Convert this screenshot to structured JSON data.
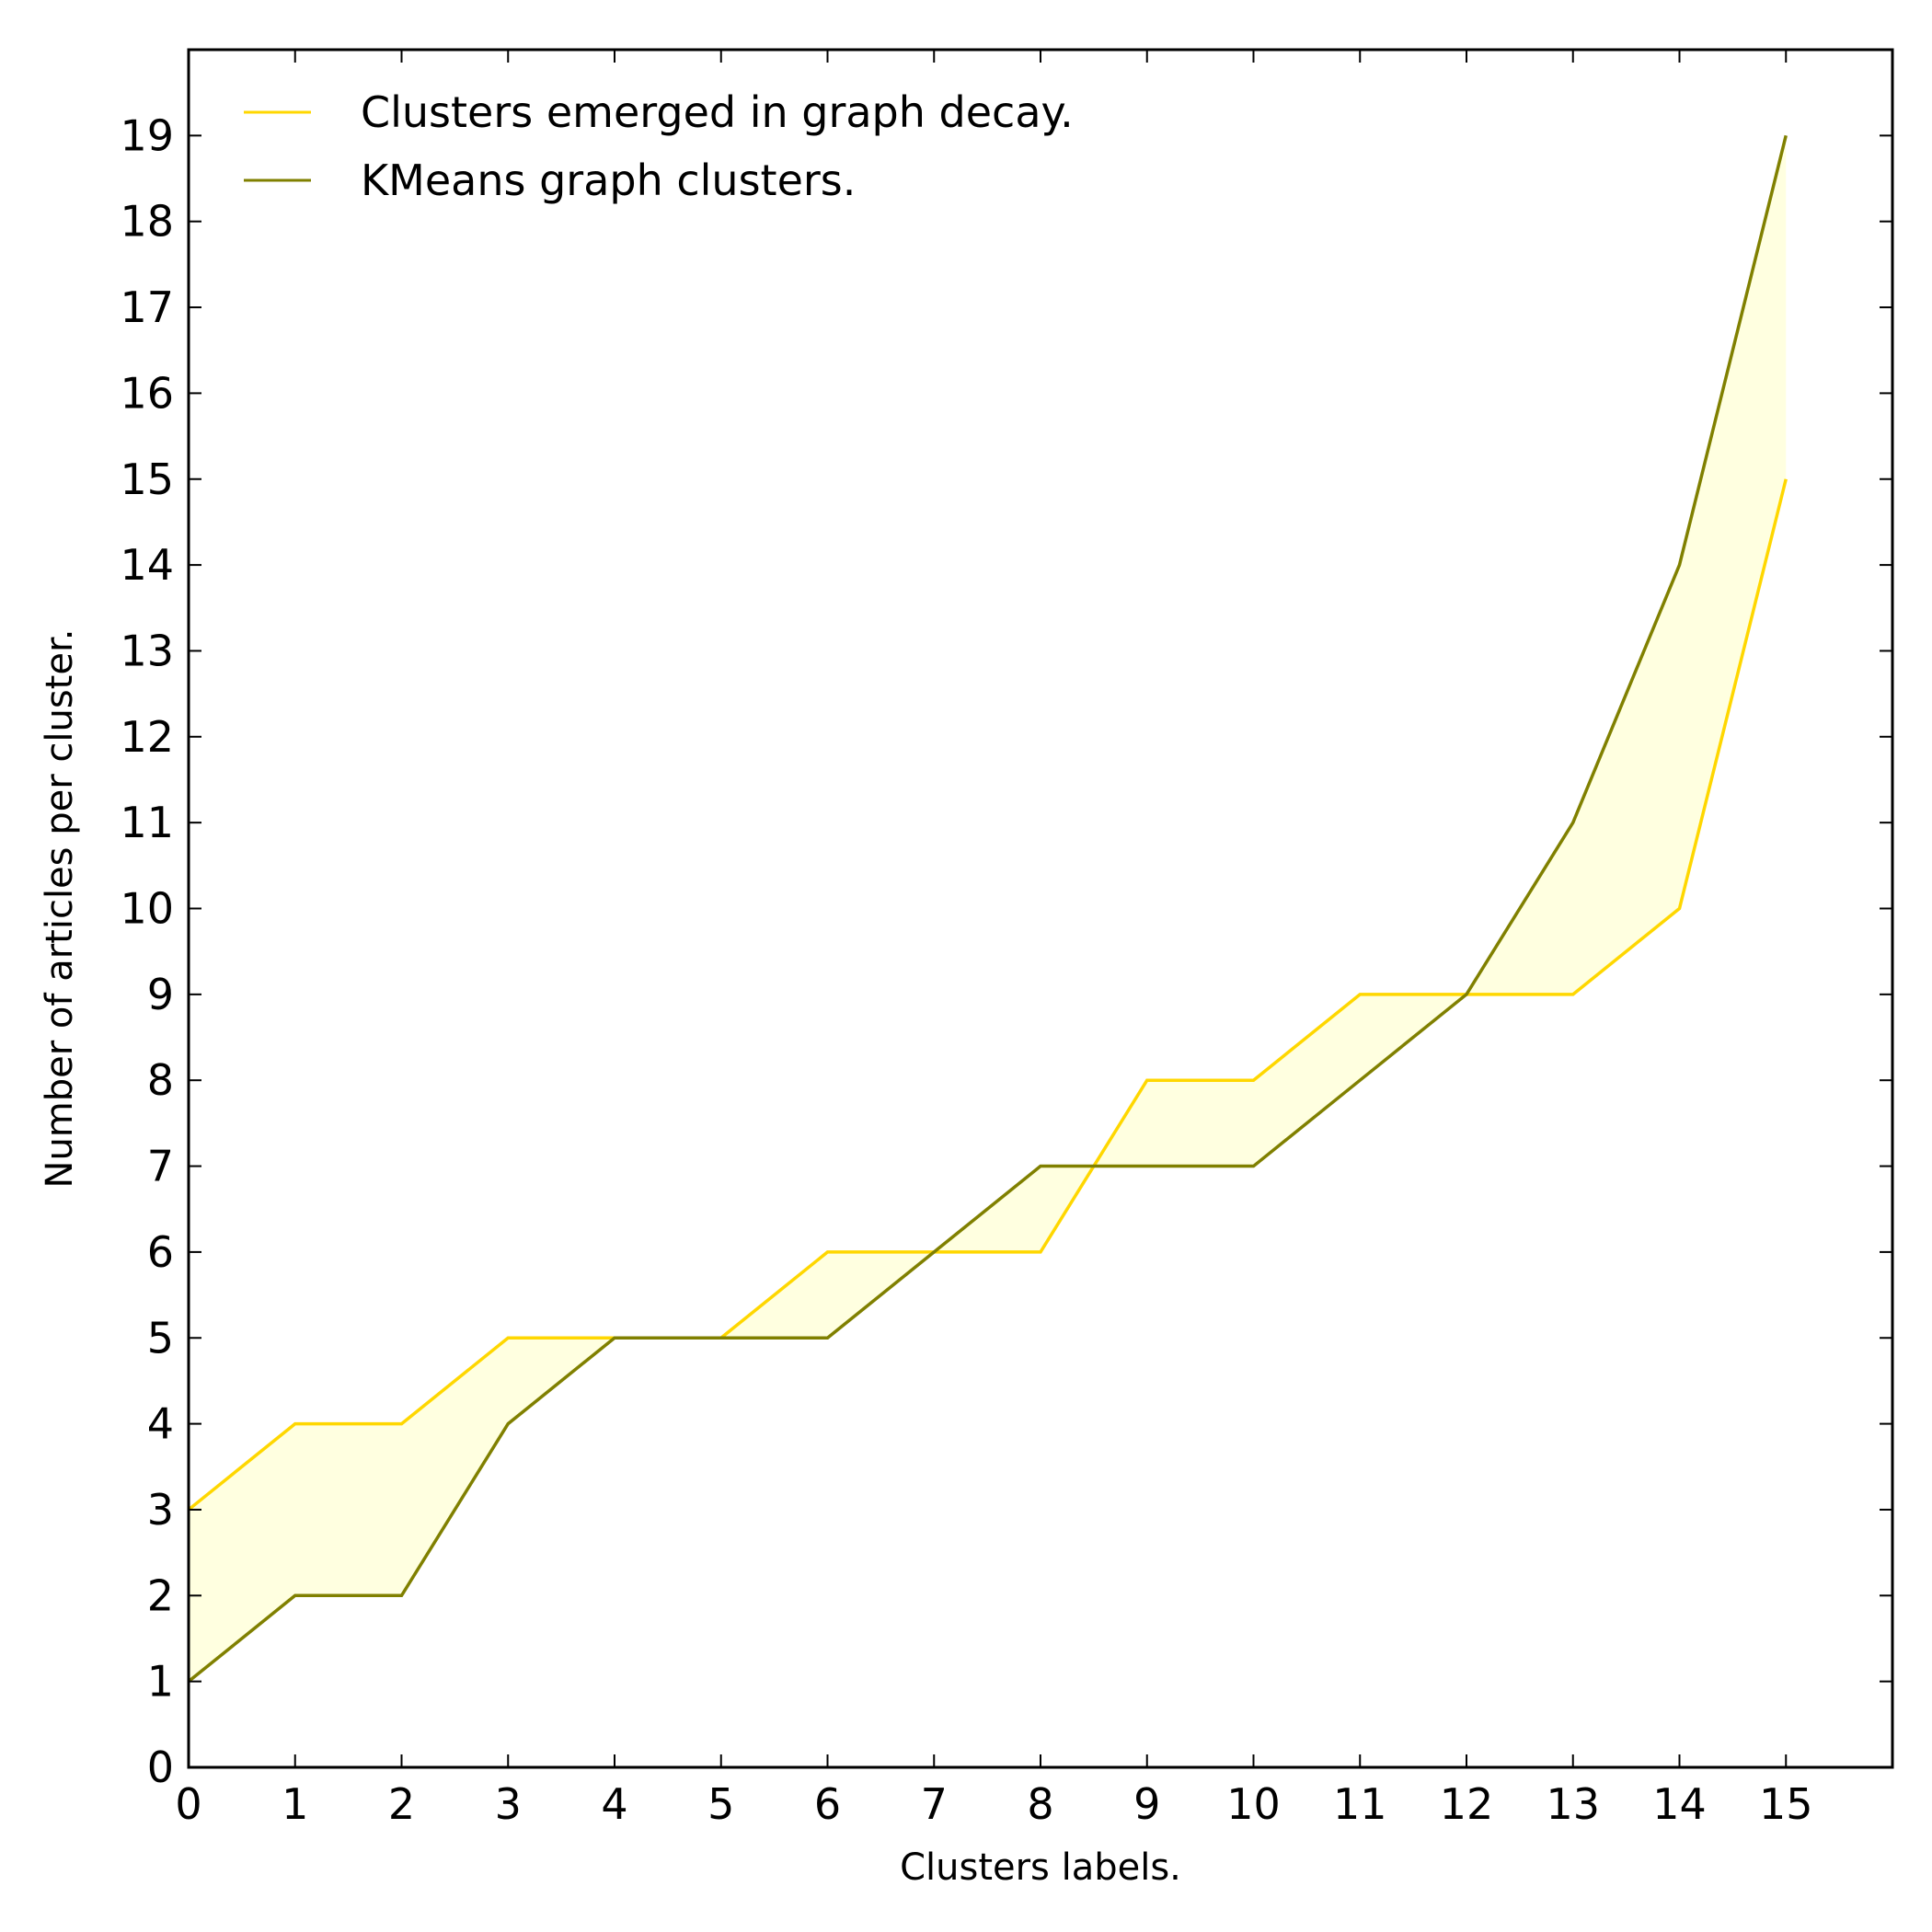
{
  "chart_data": {
    "type": "line",
    "xlabel": "Clusters labels.",
    "ylabel": "Number of articles per cluster.",
    "xlim": [
      0,
      16
    ],
    "ylim": [
      0,
      20
    ],
    "xticks": [
      0,
      1,
      2,
      3,
      4,
      5,
      6,
      7,
      8,
      9,
      10,
      11,
      12,
      13,
      14,
      15
    ],
    "yticks": [
      0,
      1,
      2,
      3,
      4,
      5,
      6,
      7,
      8,
      9,
      10,
      11,
      12,
      13,
      14,
      15,
      16,
      17,
      18,
      19
    ],
    "x": [
      0,
      1,
      2,
      3,
      4,
      5,
      6,
      7,
      8,
      9,
      10,
      11,
      12,
      13,
      14,
      15
    ],
    "series": [
      {
        "name": "Clusters emerged in graph decay.",
        "color": "#FFD700",
        "values": [
          3,
          4,
          4,
          5,
          5,
          5,
          6,
          6,
          6,
          8,
          8,
          9,
          9,
          9,
          10,
          15
        ]
      },
      {
        "name": "KMeans graph clusters.",
        "color": "#808000",
        "values": [
          1,
          2,
          2,
          4,
          5,
          5,
          5,
          6,
          7,
          7,
          7,
          8,
          9,
          11,
          14,
          19
        ]
      }
    ],
    "fill_between": {
      "color": "#FFFFE0"
    },
    "legend_position": "top-left",
    "grid": false
  }
}
